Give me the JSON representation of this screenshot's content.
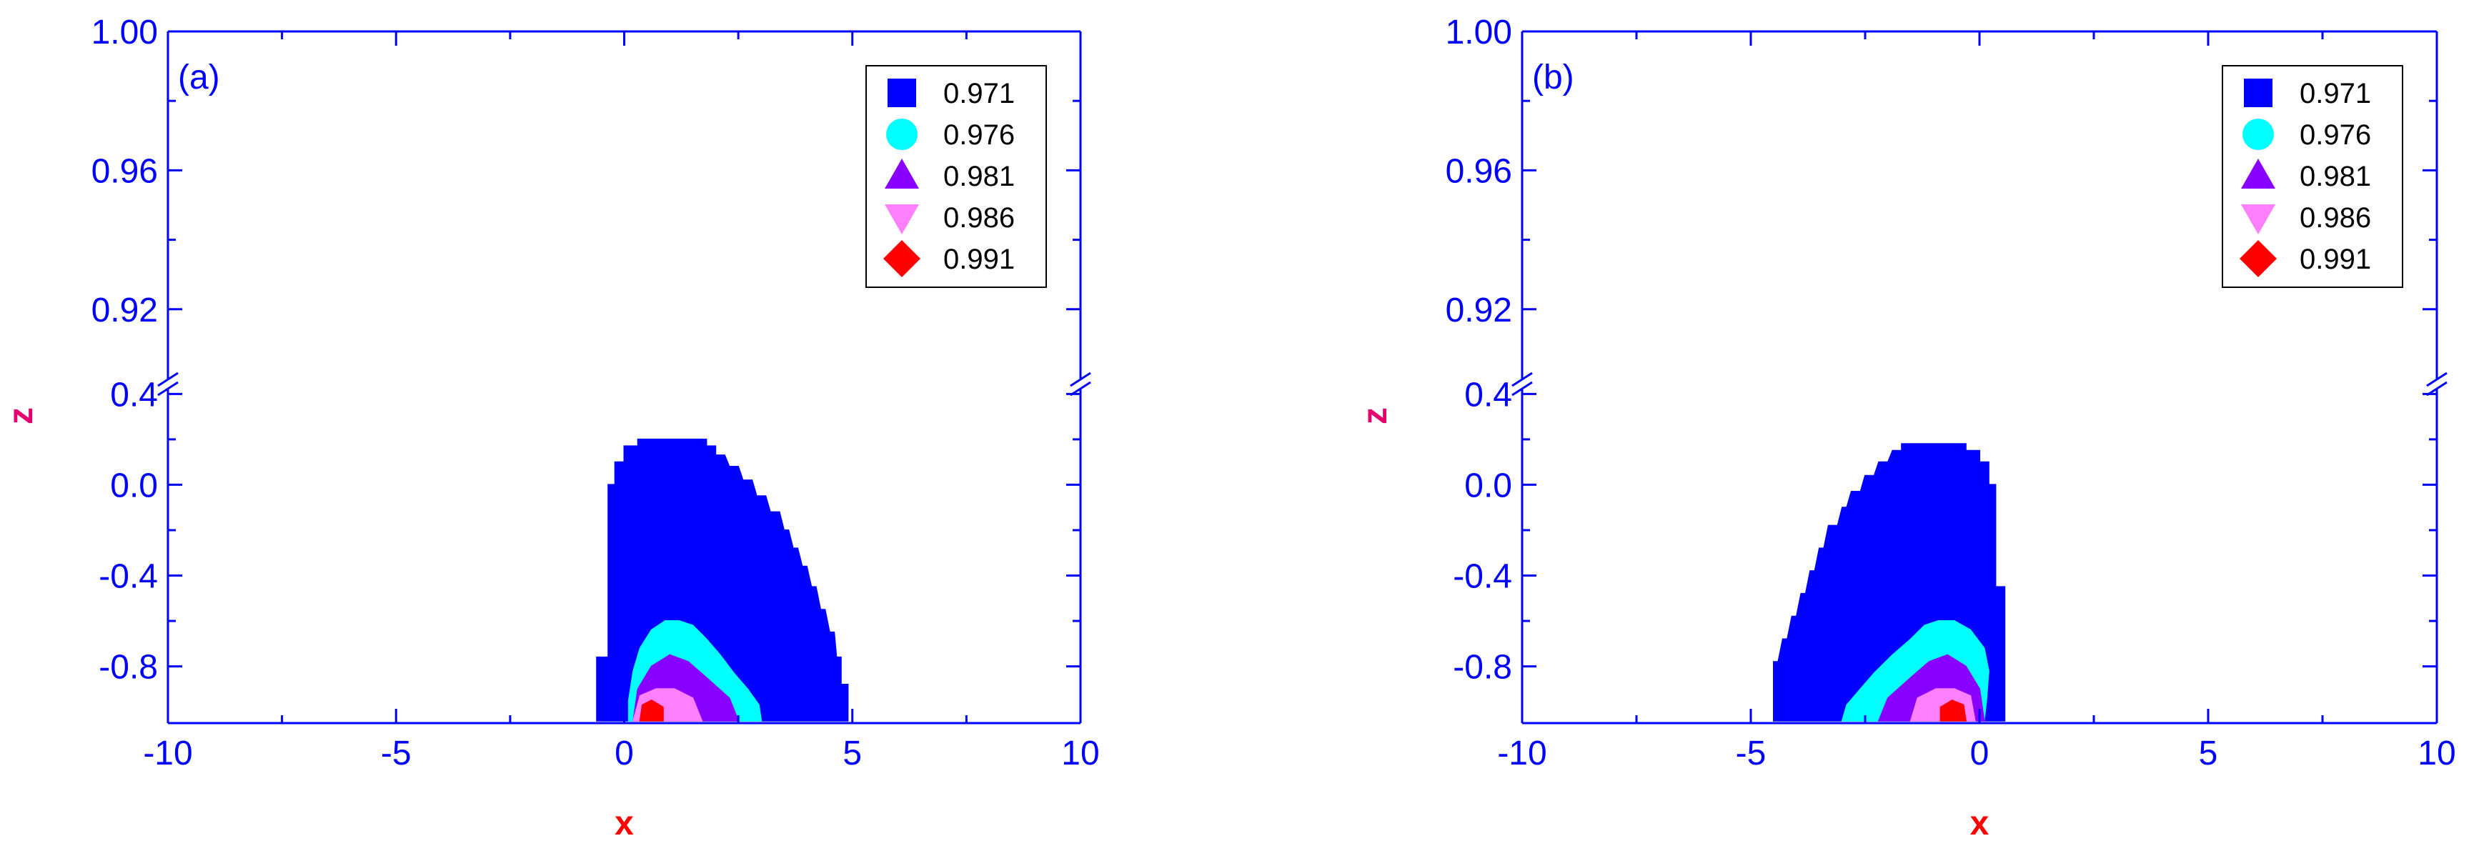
{
  "chart_data": [
    {
      "type": "scatter",
      "panel_label": "(a)",
      "xlabel": "x",
      "ylabel": "z",
      "xlim": [
        -10,
        10
      ],
      "x_ticks": [
        "-10",
        "-5",
        "0",
        "5",
        "10"
      ],
      "y_ticks_upper": [
        "1.00",
        "0.96",
        "0.92"
      ],
      "y_ticks_lower": [
        "0.4",
        "0.0",
        "-0.4",
        "-0.8"
      ],
      "ylim_upper": [
        0.9,
        1.0
      ],
      "ylim_lower": [
        -1.05,
        0.42
      ],
      "broken_axis": true,
      "legend_position": "top-right",
      "colors": {
        "axis": "#0000ff",
        "xlabel": "#ff0000",
        "ylabel": "#e6006e"
      },
      "series": [
        {
          "name": "0.971",
          "marker": "square",
          "color": "#0000ff",
          "region": [
            [
              -0.6,
              -1.04
            ],
            [
              -0.6,
              -0.76
            ],
            [
              -0.35,
              -0.76
            ],
            [
              -0.35,
              0.0
            ],
            [
              -0.2,
              0.0
            ],
            [
              -0.2,
              0.1
            ],
            [
              0.0,
              0.1
            ],
            [
              0.0,
              0.17
            ],
            [
              0.3,
              0.17
            ],
            [
              0.3,
              0.2
            ],
            [
              1.8,
              0.2
            ],
            [
              1.8,
              0.17
            ],
            [
              2.0,
              0.17
            ],
            [
              2.0,
              0.13
            ],
            [
              2.2,
              0.13
            ],
            [
              2.3,
              0.08
            ],
            [
              2.5,
              0.08
            ],
            [
              2.6,
              0.02
            ],
            [
              2.8,
              0.02
            ],
            [
              2.9,
              -0.05
            ],
            [
              3.1,
              -0.05
            ],
            [
              3.2,
              -0.12
            ],
            [
              3.4,
              -0.12
            ],
            [
              3.5,
              -0.2
            ],
            [
              3.6,
              -0.2
            ],
            [
              3.7,
              -0.28
            ],
            [
              3.8,
              -0.28
            ],
            [
              3.9,
              -0.36
            ],
            [
              4.0,
              -0.36
            ],
            [
              4.1,
              -0.45
            ],
            [
              4.2,
              -0.45
            ],
            [
              4.3,
              -0.55
            ],
            [
              4.4,
              -0.55
            ],
            [
              4.5,
              -0.65
            ],
            [
              4.6,
              -0.65
            ],
            [
              4.65,
              -0.76
            ],
            [
              4.75,
              -0.76
            ],
            [
              4.75,
              -0.88
            ],
            [
              4.9,
              -0.88
            ],
            [
              4.9,
              -1.04
            ]
          ]
        },
        {
          "name": "0.976",
          "marker": "circle",
          "color": "#00ffff",
          "region": [
            [
              0.1,
              -1.04
            ],
            [
              0.1,
              -0.95
            ],
            [
              0.2,
              -0.82
            ],
            [
              0.35,
              -0.72
            ],
            [
              0.6,
              -0.64
            ],
            [
              0.9,
              -0.6
            ],
            [
              1.2,
              -0.6
            ],
            [
              1.5,
              -0.62
            ],
            [
              1.8,
              -0.68
            ],
            [
              2.1,
              -0.75
            ],
            [
              2.4,
              -0.83
            ],
            [
              2.7,
              -0.9
            ],
            [
              2.95,
              -0.97
            ],
            [
              3.0,
              -1.04
            ]
          ]
        },
        {
          "name": "0.981",
          "marker": "triangle-up",
          "color": "#8800ff",
          "region": [
            [
              0.2,
              -1.04
            ],
            [
              0.3,
              -0.9
            ],
            [
              0.6,
              -0.8
            ],
            [
              1.0,
              -0.75
            ],
            [
              1.4,
              -0.78
            ],
            [
              1.8,
              -0.85
            ],
            [
              2.3,
              -0.94
            ],
            [
              2.5,
              -1.04
            ]
          ]
        },
        {
          "name": "0.986",
          "marker": "triangle-down",
          "color": "#ff80ff",
          "region": [
            [
              0.2,
              -1.04
            ],
            [
              0.35,
              -0.93
            ],
            [
              0.7,
              -0.9
            ],
            [
              1.1,
              -0.9
            ],
            [
              1.5,
              -0.94
            ],
            [
              1.7,
              -1.04
            ]
          ]
        },
        {
          "name": "0.991",
          "marker": "diamond",
          "color": "#ff0000",
          "region": [
            [
              0.35,
              -1.04
            ],
            [
              0.4,
              -0.97
            ],
            [
              0.6,
              -0.95
            ],
            [
              0.85,
              -0.98
            ],
            [
              0.85,
              -1.04
            ]
          ]
        }
      ]
    },
    {
      "type": "scatter",
      "panel_label": "(b)",
      "xlabel": "x",
      "ylabel": "z",
      "xlim": [
        -10,
        10
      ],
      "x_ticks": [
        "-10",
        "-5",
        "0",
        "5",
        "10"
      ],
      "y_ticks_upper": [
        "1.00",
        "0.96",
        "0.92"
      ],
      "y_ticks_lower": [
        "0.4",
        "0.0",
        "-0.4",
        "-0.8"
      ],
      "ylim_upper": [
        0.9,
        1.0
      ],
      "ylim_lower": [
        -1.05,
        0.42
      ],
      "broken_axis": true,
      "legend_position": "top-right",
      "colors": {
        "axis": "#0000ff",
        "xlabel": "#ff0000",
        "ylabel": "#e6006e"
      },
      "series": [
        {
          "name": "0.971",
          "marker": "square",
          "color": "#0000ff",
          "region": [
            [
              0.55,
              -1.04
            ],
            [
              0.55,
              -0.45
            ],
            [
              0.35,
              -0.45
            ],
            [
              0.35,
              0.0
            ],
            [
              0.2,
              0.0
            ],
            [
              0.2,
              0.1
            ],
            [
              0.0,
              0.1
            ],
            [
              0.0,
              0.15
            ],
            [
              -0.3,
              0.15
            ],
            [
              -0.3,
              0.18
            ],
            [
              -1.7,
              0.18
            ],
            [
              -1.7,
              0.15
            ],
            [
              -1.9,
              0.15
            ],
            [
              -2.0,
              0.1
            ],
            [
              -2.2,
              0.1
            ],
            [
              -2.3,
              0.04
            ],
            [
              -2.5,
              0.04
            ],
            [
              -2.6,
              -0.03
            ],
            [
              -2.8,
              -0.03
            ],
            [
              -2.9,
              -0.1
            ],
            [
              -3.0,
              -0.1
            ],
            [
              -3.1,
              -0.18
            ],
            [
              -3.3,
              -0.18
            ],
            [
              -3.4,
              -0.28
            ],
            [
              -3.5,
              -0.28
            ],
            [
              -3.6,
              -0.38
            ],
            [
              -3.7,
              -0.38
            ],
            [
              -3.8,
              -0.48
            ],
            [
              -3.9,
              -0.48
            ],
            [
              -4.0,
              -0.58
            ],
            [
              -4.1,
              -0.58
            ],
            [
              -4.2,
              -0.68
            ],
            [
              -4.3,
              -0.68
            ],
            [
              -4.4,
              -0.78
            ],
            [
              -4.5,
              -0.78
            ],
            [
              -4.5,
              -1.04
            ]
          ]
        },
        {
          "name": "0.976",
          "marker": "circle",
          "color": "#00ffff",
          "region": [
            [
              0.1,
              -1.04
            ],
            [
              0.15,
              -0.95
            ],
            [
              0.2,
              -0.82
            ],
            [
              0.1,
              -0.72
            ],
            [
              -0.2,
              -0.64
            ],
            [
              -0.55,
              -0.6
            ],
            [
              -0.9,
              -0.6
            ],
            [
              -1.2,
              -0.62
            ],
            [
              -1.5,
              -0.68
            ],
            [
              -1.9,
              -0.75
            ],
            [
              -2.3,
              -0.83
            ],
            [
              -2.6,
              -0.9
            ],
            [
              -2.9,
              -0.97
            ],
            [
              -3.0,
              -1.04
            ]
          ]
        },
        {
          "name": "0.981",
          "marker": "triangle-up",
          "color": "#8800ff",
          "region": [
            [
              0.1,
              -1.04
            ],
            [
              0.0,
              -0.9
            ],
            [
              -0.3,
              -0.8
            ],
            [
              -0.7,
              -0.75
            ],
            [
              -1.1,
              -0.78
            ],
            [
              -1.5,
              -0.85
            ],
            [
              -2.0,
              -0.94
            ],
            [
              -2.2,
              -1.04
            ]
          ]
        },
        {
          "name": "0.986",
          "marker": "triangle-down",
          "color": "#ff80ff",
          "region": [
            [
              -0.1,
              -1.04
            ],
            [
              -0.2,
              -0.93
            ],
            [
              -0.55,
              -0.9
            ],
            [
              -0.95,
              -0.9
            ],
            [
              -1.35,
              -0.94
            ],
            [
              -1.5,
              -1.04
            ]
          ]
        },
        {
          "name": "0.991",
          "marker": "diamond",
          "color": "#ff0000",
          "region": [
            [
              -0.3,
              -1.04
            ],
            [
              -0.35,
              -0.97
            ],
            [
              -0.6,
              -0.95
            ],
            [
              -0.85,
              -0.98
            ],
            [
              -0.85,
              -1.04
            ]
          ]
        }
      ]
    }
  ]
}
